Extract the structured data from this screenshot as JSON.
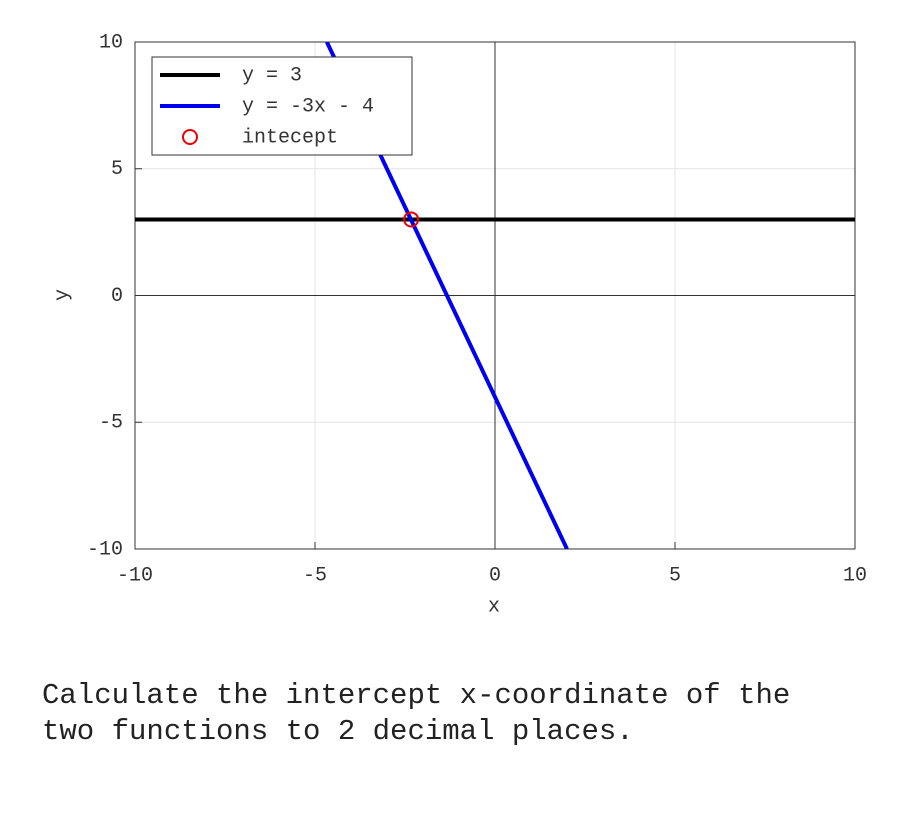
{
  "chart_data": {
    "type": "line",
    "xlabel": "x",
    "ylabel": "y",
    "xlim": [
      -10,
      10
    ],
    "ylim": [
      -10,
      10
    ],
    "xticks": [
      -10,
      -5,
      0,
      5,
      10
    ],
    "yticks": [
      -10,
      -5,
      0,
      5,
      10
    ],
    "grid": true,
    "legend": "upper left",
    "series": [
      {
        "name": "y = 3",
        "color": "#000000",
        "x": [
          -10,
          10
        ],
        "values": [
          3,
          3
        ]
      },
      {
        "name": "y = -3x - 4",
        "color": "#0000ee",
        "x": [
          -4.67,
          2
        ],
        "values": [
          10,
          -10
        ]
      },
      {
        "name": "intecept",
        "color": "#ee0000",
        "marker": "circle",
        "x": [
          -2.33
        ],
        "values": [
          3
        ]
      }
    ]
  },
  "question": "Calculate the intercept x-coordinate of the two functions to 2 decimal places."
}
